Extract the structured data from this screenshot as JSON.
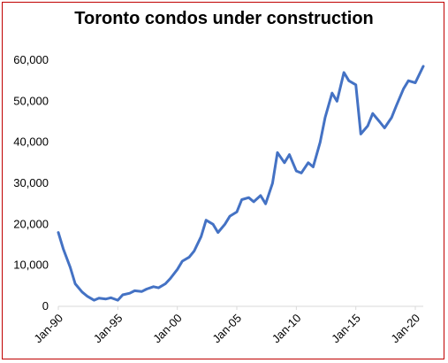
{
  "chart_data": {
    "type": "line",
    "title": "Toronto condos under construction",
    "xlabel": "",
    "ylabel": "",
    "ylim": [
      0,
      60000
    ],
    "xlim": [
      "1990-01",
      "2020-09"
    ],
    "grid": false,
    "legend": "none",
    "y_ticks": [
      "0",
      "10,000",
      "20,000",
      "30,000",
      "40,000",
      "50,000",
      "60,000"
    ],
    "x_ticks": [
      "Jan-90",
      "Jan-95",
      "Jan-00",
      "Jan-05",
      "Jan-10",
      "Jan-15",
      "Jan-20"
    ],
    "series": [
      {
        "color": "#4472c4",
        "x": [
          "1990-01",
          "1990-06",
          "1991-01",
          "1991-06",
          "1992-01",
          "1992-06",
          "1993-01",
          "1993-06",
          "1994-01",
          "1994-06",
          "1995-01",
          "1995-06",
          "1996-01",
          "1996-06",
          "1997-01",
          "1997-06",
          "1998-01",
          "1998-06",
          "1999-01",
          "1999-06",
          "2000-01",
          "2000-06",
          "2001-01",
          "2001-06",
          "2002-01",
          "2002-06",
          "2003-01",
          "2003-06",
          "2004-01",
          "2004-06",
          "2005-01",
          "2005-06",
          "2006-01",
          "2006-06",
          "2007-01",
          "2007-06",
          "2008-01",
          "2008-06",
          "2009-01",
          "2009-06",
          "2010-01",
          "2010-06",
          "2011-01",
          "2011-06",
          "2012-01",
          "2012-06",
          "2013-01",
          "2013-06",
          "2014-01",
          "2014-06",
          "2015-01",
          "2015-06",
          "2016-01",
          "2016-06",
          "2017-01",
          "2017-06",
          "2018-01",
          "2018-06",
          "2019-01",
          "2019-06",
          "2020-01",
          "2020-06",
          "2020-09"
        ],
        "values": [
          18000,
          14000,
          9500,
          5500,
          3500,
          2500,
          1500,
          2000,
          1800,
          2100,
          1500,
          2800,
          3200,
          3800,
          3600,
          4200,
          4800,
          4500,
          5500,
          6800,
          9000,
          11000,
          12000,
          13500,
          17000,
          21000,
          20000,
          18000,
          20000,
          22000,
          23000,
          26000,
          26500,
          25500,
          27000,
          25000,
          30000,
          37500,
          35000,
          37000,
          33000,
          32500,
          35000,
          34000,
          40000,
          46000,
          52000,
          50000,
          57000,
          55000,
          54000,
          42000,
          44000,
          47000,
          45000,
          43500,
          46000,
          49000,
          53000,
          55000,
          54500,
          57000,
          58500
        ]
      }
    ]
  }
}
